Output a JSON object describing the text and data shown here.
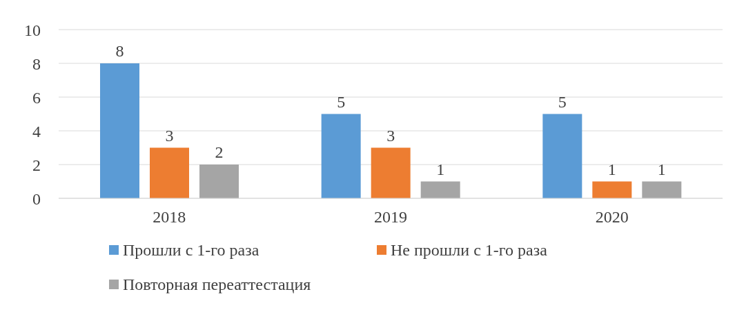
{
  "chart_data": {
    "type": "bar",
    "categories": [
      "2018",
      "2019",
      "2020"
    ],
    "series": [
      {
        "name": "Прошли с 1-го раза",
        "color": "#5b9bd5",
        "values": [
          8,
          5,
          5
        ]
      },
      {
        "name": "Не прошли с 1-го раза",
        "color": "#ed7d31",
        "values": [
          3,
          3,
          1
        ]
      },
      {
        "name": "Повторная переаттестация",
        "color": "#a5a5a5",
        "values": [
          2,
          1,
          1
        ]
      }
    ],
    "ylim": [
      0,
      10
    ],
    "yticks": [
      0,
      2,
      4,
      6,
      8,
      10
    ],
    "grid": "y",
    "legend": "bottom",
    "data_labels": true
  }
}
